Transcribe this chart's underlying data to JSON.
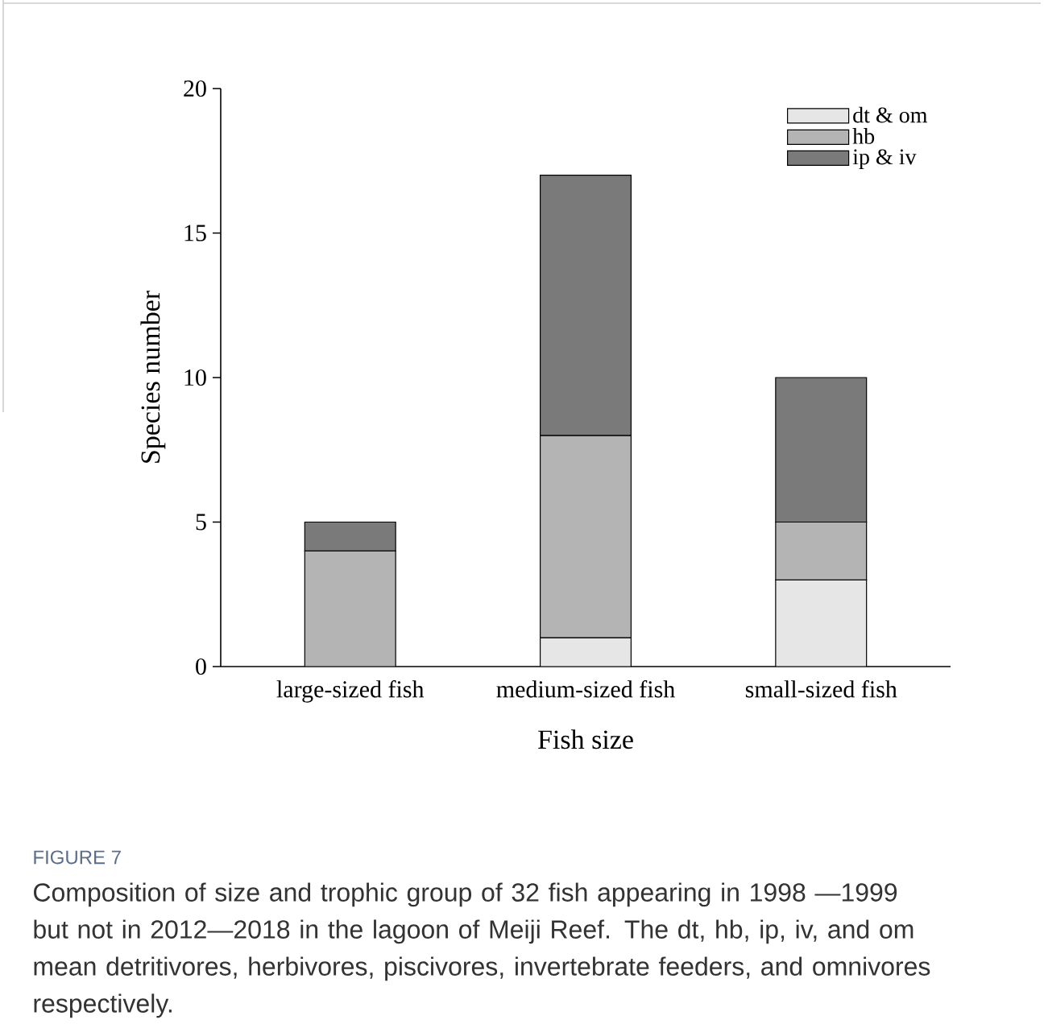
{
  "chart_data": {
    "type": "bar",
    "stacked": true,
    "categories": [
      "large-sized fish",
      "medium-sized fish",
      "small-sized fish"
    ],
    "series": [
      {
        "name": "dt & om",
        "color": "#e6e6e6",
        "values": [
          0,
          1,
          3
        ]
      },
      {
        "name": "hb",
        "color": "#b4b4b4",
        "values": [
          4,
          7,
          2
        ]
      },
      {
        "name": "ip & iv",
        "color": "#7a7a7a",
        "values": [
          1,
          9,
          5
        ]
      }
    ],
    "xlabel": "Fish size",
    "ylabel": "Species number",
    "ylim": [
      0,
      20
    ],
    "yticks": [
      0,
      5,
      10,
      15,
      20
    ],
    "grid": false,
    "legend": "top right",
    "annotations": [
      "FIGURE 7",
      "Composition of size and trophic group of 32 fish appearing in 1998 —1999 but not in 2012—2018 in the lagoon of Meiji Reef. The dt, hb, ip, iv, and om mean detritivores, herbivores, piscivores, invertebrate feeders, and omnivores respectively."
    ]
  }
}
